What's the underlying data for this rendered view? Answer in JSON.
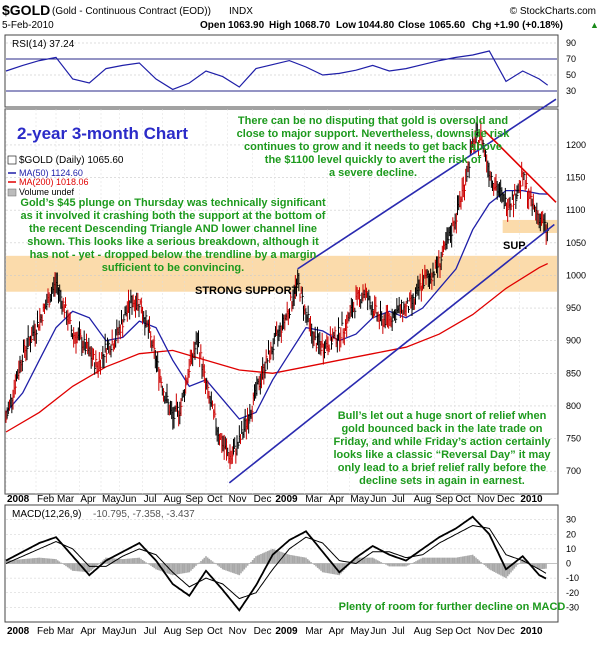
{
  "header": {
    "symbol": "$GOLD",
    "description": "(Gold - Continuous Contract (EOD))",
    "exchange": "INDX",
    "date": "5-Feb-2010",
    "watermark": "© StockCharts.com",
    "open_label": "Open",
    "open": "1063.90",
    "high_label": "High",
    "high": "1068.70",
    "low_label": "Low",
    "low": "1044.80",
    "close_label": "Close",
    "close": "1065.60",
    "chg_label": "Chg",
    "chg": "+1.90 (+0.18%)",
    "chg_arrow": "▲"
  },
  "rsi_panel": {
    "legend": "RSI(14) 37.24",
    "ticks": [
      {
        "v": 90,
        "label": "90"
      },
      {
        "v": 70,
        "label": "70"
      },
      {
        "v": 50,
        "label": "50"
      },
      {
        "v": 30,
        "label": "30"
      }
    ],
    "overbought": 70,
    "oversold": 30,
    "color": "#1f1fa8"
  },
  "price_panel": {
    "legend_main": "$GOLD (Daily) 1065.60",
    "legend_ma50": "MA(50) 1124.60",
    "legend_ma200": "MA(200) 1018.06",
    "legend_volume": "Volume undef",
    "ylim": [
      665,
      1255
    ],
    "ticks": [
      {
        "v": 1200,
        "label": "1200"
      },
      {
        "v": 1150,
        "label": "1150"
      },
      {
        "v": 1100,
        "label": "1100"
      },
      {
        "v": 1050,
        "label": "1050"
      },
      {
        "v": 1000,
        "label": "1000"
      },
      {
        "v": 950,
        "label": "950"
      },
      {
        "v": 900,
        "label": "900"
      },
      {
        "v": 850,
        "label": "850"
      },
      {
        "v": 800,
        "label": "800"
      },
      {
        "v": 750,
        "label": "750"
      },
      {
        "v": 700,
        "label": "700"
      }
    ],
    "support_band": [
      975,
      1030
    ],
    "sup_band": [
      1065,
      1085
    ],
    "ma50_color": "#1f1fa8",
    "ma200_color": "#e00000",
    "trend_color": "#2a2ab0",
    "triangle_color": "#e00000"
  },
  "macd_panel": {
    "legend_prefix": "MACD(12,26,9)",
    "legend_values": "-10.795, -7.358, -3.437",
    "ylim": [
      -40,
      40
    ],
    "ticks": [
      {
        "v": 30,
        "label": "30"
      },
      {
        "v": 20,
        "label": "20"
      },
      {
        "v": 10,
        "label": "10"
      },
      {
        "v": 0,
        "label": "0"
      },
      {
        "v": -10,
        "label": "-10"
      },
      {
        "v": -20,
        "label": "-20"
      },
      {
        "v": -30,
        "label": "-30"
      }
    ]
  },
  "x_axis": {
    "labels": [
      {
        "t": 0.5,
        "label": "2008",
        "bold": true
      },
      {
        "t": 2.3,
        "label": "Feb",
        "bold": false
      },
      {
        "t": 3.5,
        "label": "Mar",
        "bold": false
      },
      {
        "t": 4.9,
        "label": "Apr",
        "bold": false
      },
      {
        "t": 6.2,
        "label": "May",
        "bold": false
      },
      {
        "t": 7.3,
        "label": "Jun",
        "bold": false
      },
      {
        "t": 8.7,
        "label": "Jul",
        "bold": false
      },
      {
        "t": 9.9,
        "label": "Aug",
        "bold": false
      },
      {
        "t": 11.2,
        "label": "Sep",
        "bold": false
      },
      {
        "t": 12.5,
        "label": "Oct",
        "bold": false
      },
      {
        "t": 13.8,
        "label": "Nov",
        "bold": false
      },
      {
        "t": 15.3,
        "label": "Dec",
        "bold": false
      },
      {
        "t": 16.6,
        "label": "2009",
        "bold": true
      },
      {
        "t": 18.4,
        "label": "Mar",
        "bold": false
      },
      {
        "t": 19.8,
        "label": "Apr",
        "bold": false
      },
      {
        "t": 21.1,
        "label": "May",
        "bold": false
      },
      {
        "t": 22.3,
        "label": "Jun",
        "bold": false
      },
      {
        "t": 23.6,
        "label": "Jul",
        "bold": false
      },
      {
        "t": 24.9,
        "label": "Aug",
        "bold": false
      },
      {
        "t": 26.2,
        "label": "Sep",
        "bold": false
      },
      {
        "t": 27.4,
        "label": "Oct",
        "bold": false
      },
      {
        "t": 28.7,
        "label": "Nov",
        "bold": false
      },
      {
        "t": 29.9,
        "label": "Dec",
        "bold": false
      },
      {
        "t": 31.3,
        "label": "2010",
        "bold": true
      }
    ]
  },
  "annotations": {
    "chart_title": "2-year 3-month Chart",
    "oversold_note": [
      "There can be no disputing that gold is oversold and",
      "close to major support. Nevertheless, downside risk",
      "continues to grow and it needs to get back above",
      "the $1100 level quickly to avert the risk of",
      "a severe decline."
    ],
    "plunge_note": [
      "Gold’s $45 plunge on Thursday was technically significant",
      "as it involved it crashing both the support at the bottom of",
      "the recent Descending Triangle AND lower channel line",
      "shown. This looks like a serious breakdown, although it",
      "has not - yet - dropped below the trendline by a margin",
      "sufficient to be convincing."
    ],
    "strong_support": "STRONG SUPPORT",
    "sup": "SUP.",
    "bulls_note": [
      "Bull’s let out a huge snort of relief when",
      "gold bounced back in the late trade on",
      "Friday, and while Friday’s action certainly",
      "looks like a classic “Reversal Day” it may",
      "only lead to a brief relief rally before the",
      "decline sets in again in earnest."
    ],
    "macd_note": "Plenty of room for further decline on MACD"
  },
  "chart_data": {
    "type": "line",
    "title": "$GOLD (Gold - Continuous Contract (EOD)) INDX",
    "x_unit": "months since Jan 2008",
    "series": [
      {
        "name": "$GOLD (Daily)",
        "x": [
          0,
          0.5,
          1,
          1.5,
          2,
          2.5,
          3,
          3.5,
          4,
          4.5,
          5,
          5.5,
          6,
          6.5,
          7,
          7.5,
          8,
          8.5,
          9,
          9.5,
          10,
          10.5,
          11,
          11.5,
          12,
          12.5,
          13,
          13.5,
          14,
          14.5,
          15,
          15.5,
          16,
          16.5,
          17,
          17.5,
          18,
          18.5,
          19,
          19.5,
          20,
          20.5,
          21,
          21.5,
          22,
          22.5,
          23,
          23.5,
          24,
          24.5,
          25,
          25.5,
          26,
          26.5,
          27,
          27.5,
          28,
          28.5,
          29,
          29.5,
          30,
          30.5,
          31,
          31.5,
          32,
          32.5
        ],
        "values": [
          780,
          830,
          880,
          905,
          930,
          960,
          990,
          950,
          910,
          900,
          880,
          860,
          890,
          900,
          930,
          960,
          960,
          920,
          870,
          820,
          780,
          800,
          860,
          900,
          830,
          780,
          740,
          720,
          745,
          780,
          820,
          860,
          890,
          920,
          950,
          990,
          940,
          900,
          890,
          900,
          910,
          930,
          960,
          975,
          950,
          930,
          935,
          945,
          950,
          960,
          990,
          1000,
          1020,
          1050,
          1090,
          1140,
          1200,
          1215,
          1160,
          1130,
          1110,
          1120,
          1150,
          1110,
          1090,
          1065
        ]
      },
      {
        "name": "MA(50)",
        "x": [
          0,
          1,
          2,
          3,
          4,
          5,
          6,
          7,
          8,
          9,
          10,
          11,
          12,
          13,
          14,
          15,
          16,
          17,
          18,
          19,
          20,
          21,
          22,
          23,
          24,
          25,
          26,
          27,
          28,
          29,
          30,
          31,
          32,
          32.5
        ],
        "values": [
          790,
          820,
          870,
          920,
          945,
          935,
          900,
          905,
          930,
          920,
          870,
          830,
          840,
          810,
          780,
          790,
          840,
          880,
          920,
          915,
          900,
          910,
          935,
          945,
          935,
          950,
          980,
          1010,
          1070,
          1110,
          1130,
          1130,
          1125,
          1124.6
        ]
      },
      {
        "name": "MA(200)",
        "x": [
          0,
          2,
          4,
          6,
          8,
          10,
          12,
          14,
          16,
          18,
          20,
          22,
          24,
          26,
          28,
          30,
          32,
          32.5
        ],
        "values": [
          760,
          790,
          830,
          860,
          880,
          885,
          870,
          855,
          850,
          860,
          870,
          880,
          890,
          910,
          940,
          980,
          1012,
          1018.06
        ]
      }
    ],
    "rsi": {
      "name": "RSI(14)",
      "x": [
        0,
        1,
        2,
        3,
        4,
        5,
        6,
        7,
        8,
        9,
        10,
        11,
        12,
        13,
        14,
        15,
        16,
        17,
        18,
        19,
        20,
        21,
        22,
        23,
        24,
        25,
        26,
        27,
        28,
        29,
        30,
        31,
        32,
        32.5
      ],
      "values": [
        55,
        62,
        68,
        72,
        45,
        40,
        58,
        62,
        65,
        45,
        32,
        40,
        55,
        48,
        35,
        58,
        63,
        68,
        60,
        50,
        52,
        56,
        62,
        55,
        58,
        63,
        68,
        72,
        75,
        80,
        42,
        55,
        45,
        37.24
      ]
    },
    "macd": {
      "name": "MACD(12,26,9)",
      "x": [
        0,
        1,
        2,
        3,
        4,
        5,
        6,
        7,
        8,
        9,
        10,
        11,
        12,
        13,
        14,
        15,
        16,
        17,
        18,
        19,
        20,
        21,
        22,
        23,
        24,
        25,
        26,
        27,
        28,
        29,
        30,
        31,
        32,
        32.5
      ],
      "macd": [
        2,
        8,
        14,
        18,
        5,
        -8,
        2,
        8,
        14,
        2,
        -14,
        -22,
        -5,
        -18,
        -32,
        -15,
        6,
        16,
        22,
        8,
        -6,
        4,
        12,
        6,
        2,
        10,
        18,
        24,
        32,
        20,
        -4,
        5,
        -8,
        -10.795
      ],
      "signal": [
        0,
        5,
        10,
        15,
        10,
        -2,
        -2,
        5,
        10,
        6,
        -6,
        -16,
        -10,
        -14,
        -24,
        -20,
        -4,
        10,
        18,
        14,
        2,
        0,
        8,
        8,
        4,
        6,
        14,
        20,
        26,
        24,
        6,
        2,
        -4,
        -7.358
      ]
    },
    "ylim": [
      665,
      1255
    ],
    "xlabel": "",
    "ylabel": "",
    "grid": true
  }
}
